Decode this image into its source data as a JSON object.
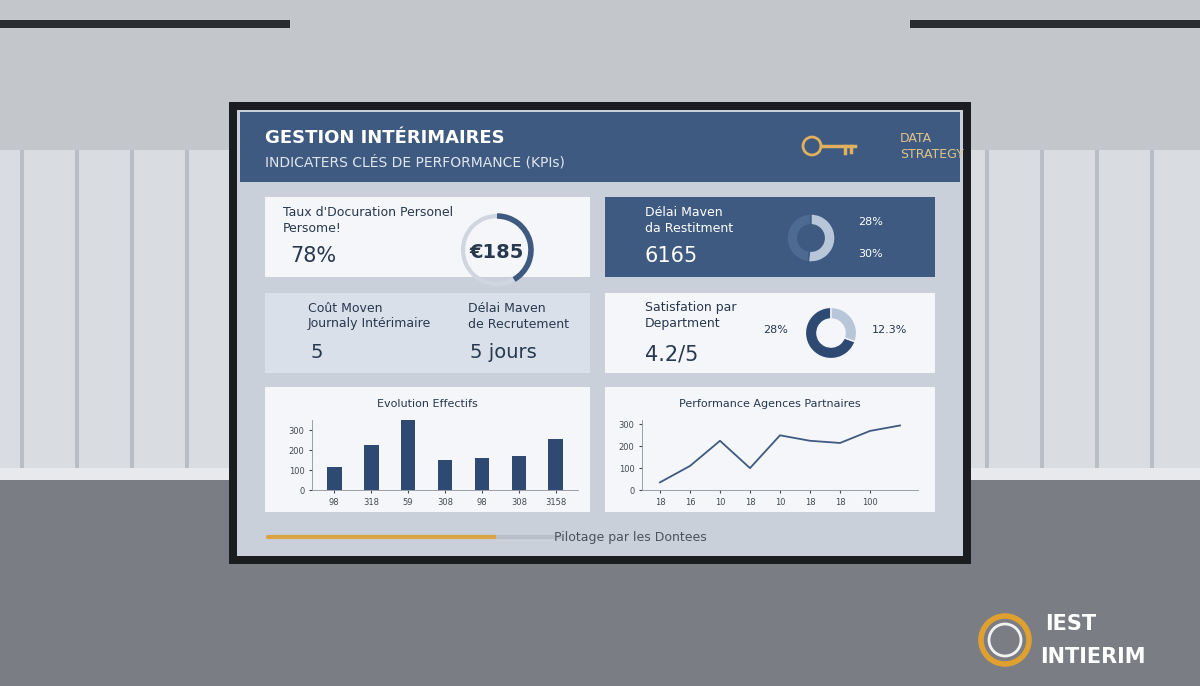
{
  "header": {
    "title": "GESTION INTÉRIMAIRES",
    "subtitle": "INDICATERS CLÉS DE PERFORMANCE (KPIs)",
    "badge": [
      "DATA",
      "STRATEGY"
    ]
  },
  "cards": [
    {
      "label": [
        "Taux d'Docuration Personel",
        "Persome!"
      ],
      "value": "78%",
      "gauge": "€185"
    },
    {
      "label": [
        "Délai Maven",
        "da Restitment"
      ],
      "value": "6165",
      "donut": {
        "values": [
          28,
          30
        ],
        "value_labels": [
          "28%",
          "30%"
        ]
      }
    },
    {
      "items": [
        {
          "label": [
            "Coût Moven",
            "Journaly Intérimaire"
          ],
          "value": "5"
        },
        {
          "label": [
            "Délai Maven",
            "de Recrutement"
          ],
          "value": "5 jours"
        }
      ]
    },
    {
      "label": [
        "Satisfation par",
        "Department"
      ],
      "value": "4.2/5",
      "donut": {
        "values": [
          28,
          12.3
        ],
        "value_labels": [
          "28%",
          "12.3%"
        ]
      }
    }
  ],
  "chart_data": [
    {
      "type": "bar",
      "title": "Evolution Effectifs",
      "categories": [
        "98",
        "318",
        "59",
        "308",
        "98",
        "308",
        "3158"
      ],
      "values": [
        114,
        224,
        348,
        152,
        162,
        171,
        257
      ],
      "ylim": [
        0,
        350
      ],
      "yticks": [
        0,
        100,
        200,
        300
      ],
      "color": "#2f4a72"
    },
    {
      "type": "line",
      "title": "Performance Agences Partnaires",
      "categories": [
        "18",
        "16",
        "10",
        "18",
        "10",
        "18",
        "18",
        "100",
        null
      ],
      "values": [
        35,
        110,
        225,
        100,
        250,
        225,
        215,
        270,
        295
      ],
      "ylim": [
        0,
        320
      ],
      "yticks": [
        0,
        100,
        200,
        300
      ],
      "color": "#3e5a80"
    }
  ],
  "footer": "Pilotage par les Dontees",
  "logo": [
    "IEST",
    "INTIERIM"
  ]
}
